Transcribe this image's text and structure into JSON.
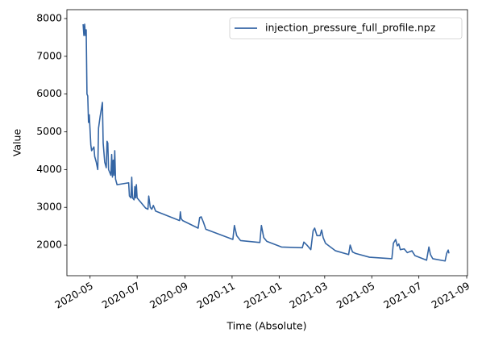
{
  "chart_data": {
    "type": "line",
    "xlabel": "Time (Absolute)",
    "ylabel": "Value",
    "legend": "upper right",
    "x": [
      "2020-04-22",
      "2020-04-23",
      "2020-04-24",
      "2020-04-25",
      "2020-04-26",
      "2020-04-27",
      "2020-04-28",
      "2020-04-29",
      "2020-04-30",
      "2020-05-02",
      "2020-05-03",
      "2020-05-06",
      "2020-05-07",
      "2020-05-09",
      "2020-05-11",
      "2020-05-12",
      "2020-05-14",
      "2020-05-16",
      "2020-05-17",
      "2020-05-18",
      "2020-05-20",
      "2020-05-22",
      "2020-05-23",
      "2020-05-24",
      "2020-05-25",
      "2020-05-28",
      "2020-05-29",
      "2020-05-30",
      "2020-05-31",
      "2020-06-01",
      "2020-06-02",
      "2020-06-03",
      "2020-06-05",
      "2020-06-20",
      "2020-06-21",
      "2020-06-23",
      "2020-06-24",
      "2020-06-25",
      "2020-06-27",
      "2020-06-28",
      "2020-06-29",
      "2020-06-30",
      "2020-07-01",
      "2020-07-12",
      "2020-07-15",
      "2020-07-16",
      "2020-07-18",
      "2020-07-20",
      "2020-07-22",
      "2020-07-25",
      "2020-08-25",
      "2020-08-26",
      "2020-08-27",
      "2020-08-29",
      "2020-09-18",
      "2020-09-20",
      "2020-09-22",
      "2020-09-25",
      "2020-09-28",
      "2020-11-02",
      "2020-11-04",
      "2020-11-07",
      "2020-11-12",
      "2020-12-07",
      "2020-12-09",
      "2020-12-12",
      "2020-12-16",
      "2021-01-04",
      "2021-01-31",
      "2021-02-02",
      "2021-02-06",
      "2021-02-11",
      "2021-02-14",
      "2021-02-16",
      "2021-02-19",
      "2021-02-23",
      "2021-02-25",
      "2021-02-27",
      "2021-03-02",
      "2021-03-15",
      "2021-04-01",
      "2021-04-03",
      "2021-04-06",
      "2021-04-10",
      "2021-04-28",
      "2021-05-27",
      "2021-05-29",
      "2021-06-01",
      "2021-06-03",
      "2021-06-05",
      "2021-06-07",
      "2021-06-12",
      "2021-06-16",
      "2021-06-22",
      "2021-06-26",
      "2021-07-11",
      "2021-07-14",
      "2021-07-16",
      "2021-07-19",
      "2021-08-04",
      "2021-08-06",
      "2021-08-08",
      "2021-08-09"
    ],
    "series": [
      {
        "name": "injection_pressure_full_profile.npz",
        "color": "#3465a4",
        "values": [
          7850,
          7550,
          7850,
          7550,
          7700,
          6000,
          5950,
          5250,
          5450,
          4650,
          4500,
          4600,
          4350,
          4200,
          4000,
          5100,
          5400,
          5650,
          5780,
          4700,
          4200,
          4050,
          4750,
          4700,
          4000,
          3850,
          4400,
          3800,
          4250,
          3850,
          4500,
          3750,
          3600,
          3650,
          3300,
          3250,
          3800,
          3250,
          3200,
          3550,
          3250,
          3600,
          3250,
          2980,
          2950,
          3300,
          3000,
          2950,
          3050,
          2900,
          2650,
          2880,
          2700,
          2650,
          2450,
          2730,
          2750,
          2600,
          2420,
          2150,
          2520,
          2250,
          2120,
          2070,
          2520,
          2200,
          2100,
          1950,
          1930,
          2080,
          2000,
          1880,
          2380,
          2450,
          2250,
          2250,
          2400,
          2200,
          2050,
          1850,
          1750,
          2000,
          1820,
          1780,
          1680,
          1640,
          2050,
          2150,
          1980,
          2030,
          1880,
          1900,
          1800,
          1850,
          1720,
          1600,
          1950,
          1750,
          1640,
          1580,
          1780,
          1870,
          1780
        ]
      }
    ],
    "xlim": [
      "2020-04-01",
      "2021-09-02"
    ],
    "xticks": [
      {
        "value": "2020-05-01",
        "label": "2020-05"
      },
      {
        "value": "2020-07-01",
        "label": "2020-07"
      },
      {
        "value": "2020-09-01",
        "label": "2020-09"
      },
      {
        "value": "2020-11-01",
        "label": "2020-11"
      },
      {
        "value": "2021-01-01",
        "label": "2021-01"
      },
      {
        "value": "2021-03-01",
        "label": "2021-03"
      },
      {
        "value": "2021-05-01",
        "label": "2021-05"
      },
      {
        "value": "2021-07-01",
        "label": "2021-07"
      },
      {
        "value": "2021-09-01",
        "label": "2021-09"
      }
    ],
    "ylim": [
      1190,
      8235
    ],
    "yticks": [
      2000,
      3000,
      4000,
      5000,
      6000,
      7000,
      8000
    ]
  }
}
